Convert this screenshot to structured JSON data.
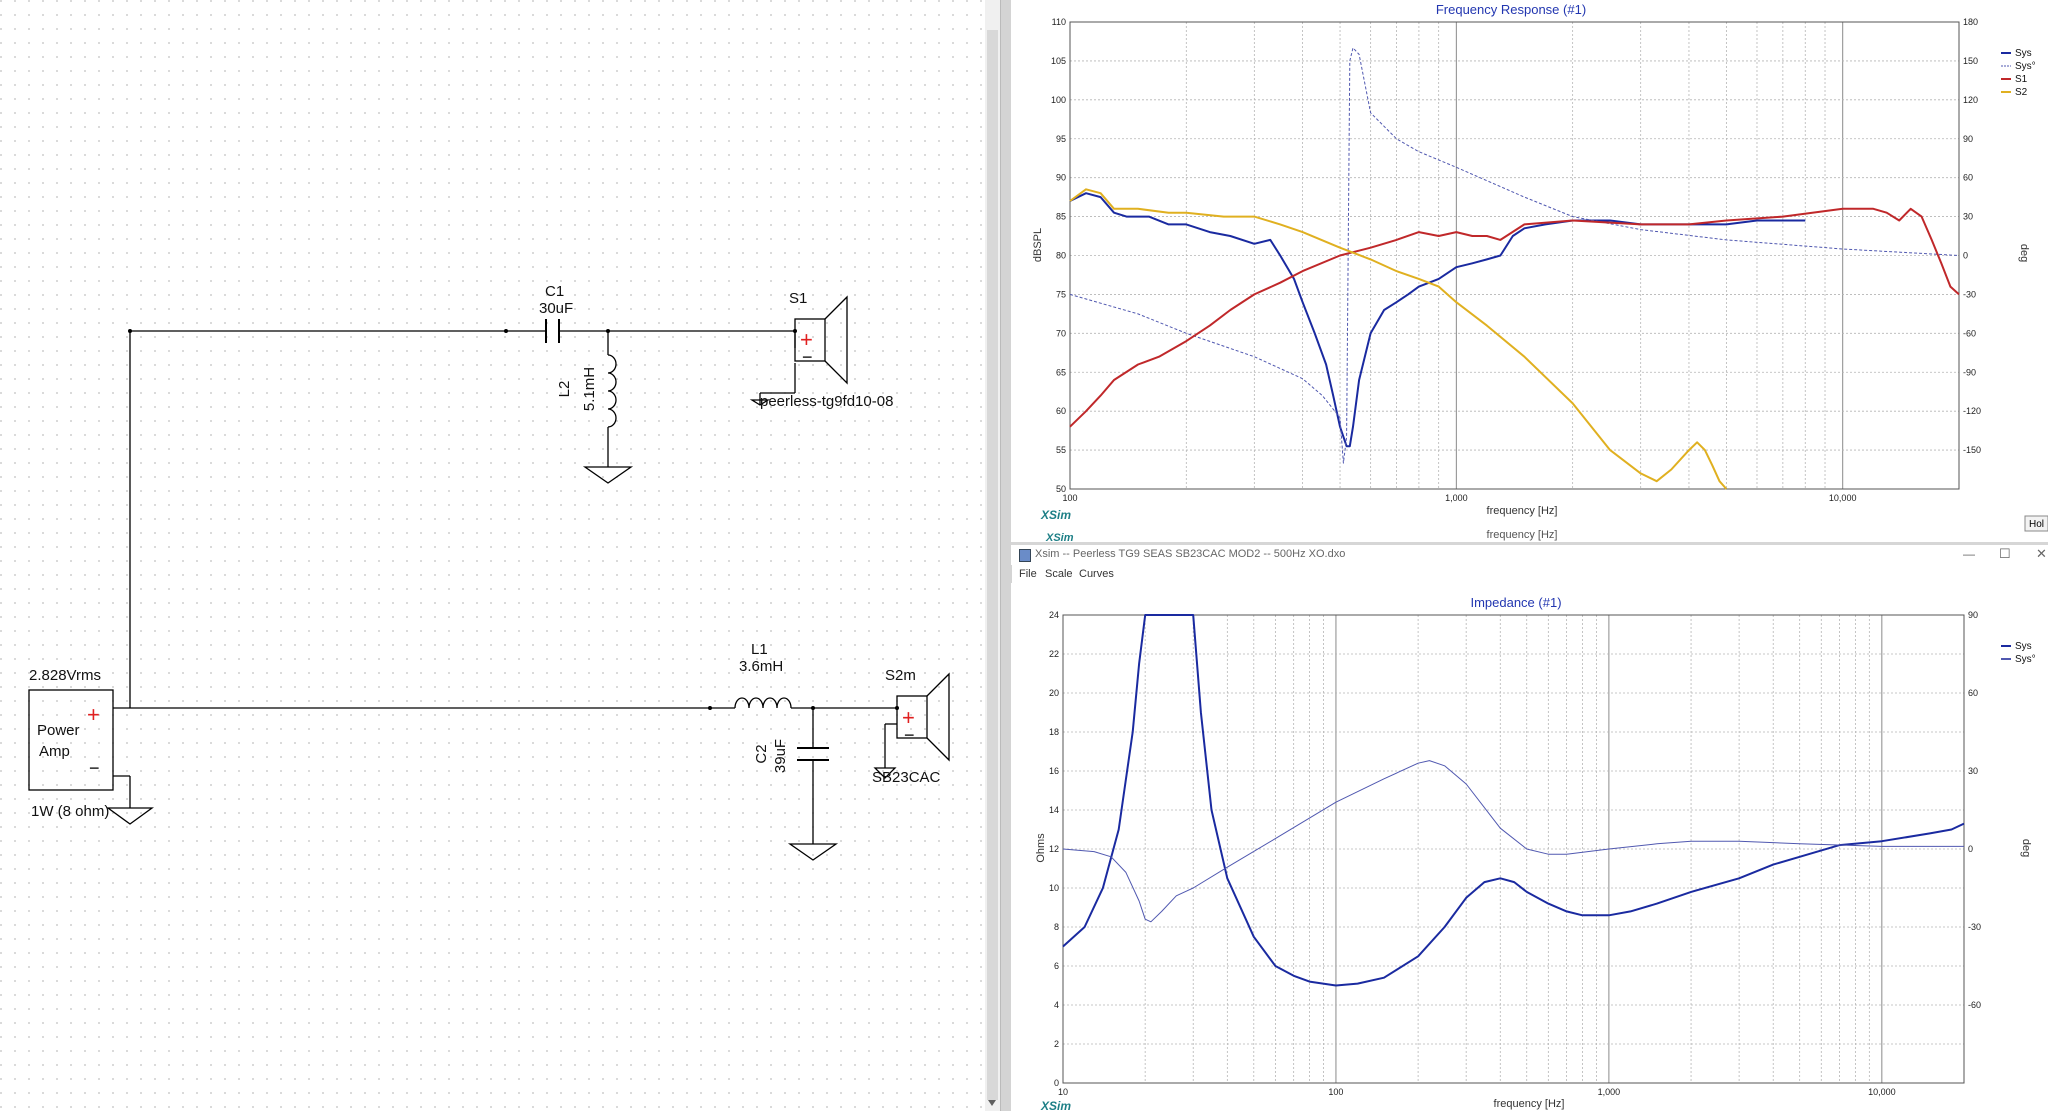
{
  "schematic": {
    "source_voltage": "2.828Vrms",
    "source_name_line1": "Power",
    "source_name_line2": "Amp",
    "source_load": "1W (8 ohm)",
    "plus_sign": "+",
    "minus_sign": "−",
    "c1_name": "C1",
    "c1_value": "30uF",
    "l2_name": "L2",
    "l2_value": "5.1mH",
    "s1_name": "S1",
    "s1_model": "peerless-tg9fd10-08",
    "l1_name": "L1",
    "l1_value": "3.6mH",
    "c2_name": "C2",
    "c2_value": "39uF",
    "s2_name": "S2m",
    "s2_model": "SB23CAC"
  },
  "colors": {
    "sys": "#1a2aa0",
    "sys_phase": "#5058b0",
    "s1": "#c0282a",
    "s2": "#e0b020",
    "xsim_logo": "#1d7f86",
    "title": "#2236b0",
    "grid": "#b5b5b5"
  },
  "freq_window": {
    "title": "Frequency Response (#1)",
    "xlabel": "frequency [Hz]",
    "ylabel_left": "dBSPL",
    "ylabel_right": "deg",
    "logo": "XSim",
    "ghost_logo": "XSim",
    "ghost_xlabel": "frequency [Hz]",
    "hold_button": "Hol",
    "x_ticks": [
      "100",
      "1,000",
      "10,000"
    ],
    "y_ticks_left": [
      "110",
      "105",
      "100",
      "95",
      "90",
      "85",
      "80",
      "75",
      "70",
      "65",
      "60",
      "55",
      "50"
    ],
    "y_ticks_right": [
      "180",
      "150",
      "120",
      "90",
      "60",
      "30",
      "0",
      "-30",
      "-60",
      "-90",
      "-120",
      "-150"
    ],
    "legend": [
      "Sys",
      "Sys°",
      "S1",
      "S2"
    ]
  },
  "imp_window": {
    "window_title": "Xsim -- Peerless TG9 SEAS SB23CAC MOD2 -- 500Hz XO.dxo",
    "menu": [
      "File",
      "Scale",
      "Curves"
    ],
    "title": "Impedance (#1)",
    "xlabel": "frequency [Hz]",
    "ylabel_left": "Ohms",
    "ylabel_right": "deg",
    "logo": "XSim",
    "x_ticks": [
      "10",
      "100",
      "1,000",
      "10,000"
    ],
    "y_ticks_left": [
      "24",
      "22",
      "20",
      "18",
      "16",
      "14",
      "12",
      "10",
      "8",
      "6",
      "4",
      "2",
      "0"
    ],
    "y_ticks_right": [
      "90",
      "60",
      "30",
      "0",
      "-30",
      "-60"
    ],
    "legend": [
      "Sys",
      "Sys°"
    ],
    "window_controls": [
      "—",
      "☐",
      "✕"
    ]
  },
  "chart_data": [
    {
      "type": "line",
      "title": "Frequency Response (#1)",
      "xlabel": "frequency [Hz]",
      "ylabel": "dBSPL",
      "y2label": "deg",
      "xscale": "log",
      "xlim": [
        100,
        20000
      ],
      "ylim": [
        50,
        110
      ],
      "y2lim": [
        -180,
        180
      ],
      "grid": true,
      "legend_position": "top-right",
      "series": [
        {
          "name": "Sys",
          "axis": "left",
          "style": "solid",
          "x": [
            100,
            110,
            120,
            130,
            140,
            160,
            180,
            200,
            230,
            260,
            300,
            330,
            350,
            380,
            400,
            430,
            460,
            480,
            500,
            520,
            530,
            540,
            560,
            600,
            650,
            700,
            750,
            800,
            850,
            900,
            1000,
            1100,
            1200,
            1300,
            1400,
            1500,
            1700,
            2000,
            2500,
            3000,
            4000,
            5000,
            6000,
            7000,
            8000
          ],
          "y": [
            87,
            88,
            87.5,
            85.5,
            85,
            85,
            84,
            84,
            83,
            82.5,
            81.5,
            82,
            80,
            77,
            74,
            70,
            66,
            62,
            58,
            55.5,
            55.5,
            58,
            64,
            70,
            73,
            74,
            75,
            76,
            76.5,
            77,
            78.5,
            79,
            79.5,
            80,
            82.5,
            83.5,
            84,
            84.5,
            84.5,
            84,
            84,
            84,
            84.5,
            84.5,
            84.5
          ]
        },
        {
          "name": "Sys°",
          "axis": "right",
          "style": "dashed",
          "x": [
            100,
            150,
            200,
            300,
            400,
            450,
            500,
            510,
            520,
            530,
            540,
            560,
            600,
            700,
            800,
            1000,
            1500,
            2000,
            3000,
            5000,
            10000,
            20000
          ],
          "y": [
            -30,
            -45,
            -60,
            -78,
            -95,
            -108,
            -125,
            -160,
            -140,
            150,
            160,
            155,
            110,
            90,
            80,
            68,
            45,
            30,
            20,
            12,
            5,
            0
          ]
        },
        {
          "name": "S1",
          "axis": "left",
          "style": "solid",
          "x": [
            100,
            110,
            120,
            130,
            150,
            170,
            200,
            230,
            260,
            300,
            350,
            400,
            500,
            600,
            700,
            800,
            900,
            1000,
            1100,
            1200,
            1300,
            1500,
            2000,
            3000,
            4000,
            5000,
            7000,
            10000,
            12000,
            13000,
            14000,
            15000,
            16000,
            17000,
            18000,
            19000,
            20000
          ],
          "y": [
            58,
            60,
            62,
            64,
            66,
            67,
            69,
            71,
            73,
            75,
            76.5,
            78,
            80,
            81,
            82,
            83,
            82.5,
            83,
            82.5,
            82.5,
            82,
            84,
            84.5,
            84,
            84,
            84.5,
            85,
            86,
            86,
            85.5,
            84.5,
            86,
            85,
            82,
            79,
            76,
            75
          ]
        },
        {
          "name": "S2",
          "axis": "left",
          "style": "solid",
          "x": [
            100,
            110,
            120,
            130,
            150,
            180,
            200,
            250,
            300,
            350,
            400,
            500,
            600,
            700,
            800,
            900,
            1000,
            1200,
            1500,
            2000,
            2500,
            3000,
            3300,
            3600,
            4000,
            4200,
            4400,
            4600,
            4800,
            5000
          ],
          "y": [
            87,
            88.5,
            88,
            86,
            86,
            85.5,
            85.5,
            85,
            85,
            84,
            83,
            81,
            79.5,
            78,
            77,
            76,
            74,
            71,
            67,
            61,
            55,
            52,
            51,
            52.5,
            55,
            56,
            55,
            53,
            51,
            50
          ]
        }
      ]
    },
    {
      "type": "line",
      "title": "Impedance (#1)",
      "xlabel": "frequency [Hz]",
      "ylabel": "Ohms",
      "y2label": "deg",
      "xscale": "log",
      "xlim": [
        10,
        20000
      ],
      "ylim": [
        0,
        24
      ],
      "y2lim": [
        -90,
        90
      ],
      "grid": true,
      "legend_position": "top-right",
      "series": [
        {
          "name": "Sys",
          "axis": "left",
          "style": "solid",
          "x": [
            10,
            12,
            14,
            16,
            18,
            19,
            20,
            22,
            25,
            28,
            30,
            32,
            35,
            40,
            50,
            60,
            70,
            80,
            100,
            120,
            150,
            200,
            250,
            300,
            350,
            400,
            450,
            500,
            600,
            700,
            800,
            1000,
            1200,
            1500,
            2000,
            3000,
            4000,
            5000,
            7000,
            10000,
            15000,
            18000,
            20000
          ],
          "y": [
            7,
            8,
            10,
            13,
            18,
            21.5,
            24,
            24,
            24,
            24,
            24,
            19,
            14,
            10.5,
            7.5,
            6,
            5.5,
            5.2,
            5,
            5.1,
            5.4,
            6.5,
            8,
            9.5,
            10.3,
            10.5,
            10.3,
            9.8,
            9.2,
            8.8,
            8.6,
            8.6,
            8.8,
            9.2,
            9.8,
            10.5,
            11.2,
            11.6,
            12.2,
            12.4,
            12.8,
            13,
            13.3
          ]
        },
        {
          "name": "Sys°",
          "axis": "right",
          "style": "solid",
          "x": [
            10,
            13,
            15,
            17,
            19,
            20,
            21,
            23,
            26,
            30,
            40,
            60,
            100,
            150,
            200,
            220,
            250,
            300,
            400,
            500,
            600,
            700,
            1000,
            1500,
            2000,
            3000,
            5000,
            10000,
            15000,
            20000
          ],
          "y": [
            0,
            -1,
            -3,
            -9,
            -20,
            -27,
            -28,
            -24,
            -18,
            -15,
            -7,
            4,
            18,
            27,
            33,
            34,
            32,
            25,
            8,
            0,
            -2,
            -2,
            0,
            2,
            3,
            3,
            2,
            1,
            1,
            1
          ]
        }
      ]
    }
  ]
}
